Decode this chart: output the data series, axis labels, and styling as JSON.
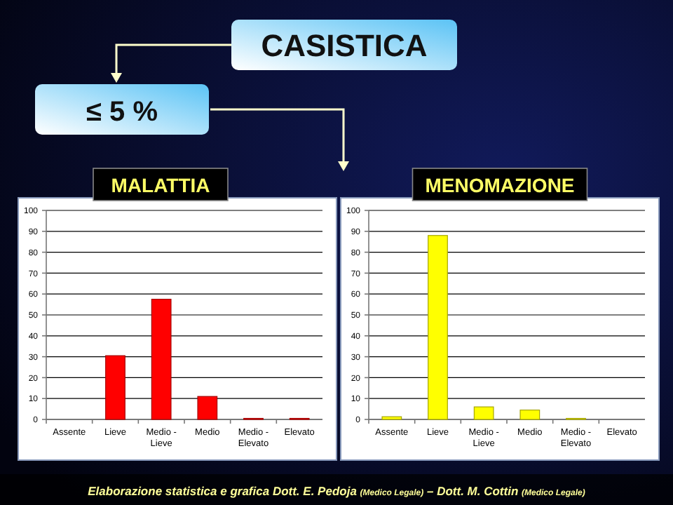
{
  "chart_data": [
    {
      "type": "bar",
      "title": "MALATTIA",
      "categories": [
        "Assente",
        "Lieve",
        "Medio - Lieve",
        "Medio",
        "Medio - Elevato",
        "Elevato"
      ],
      "values": [
        0,
        30.5,
        57.5,
        11,
        0.5,
        0.5
      ],
      "color": "#ff0000",
      "ylim": [
        0,
        100
      ],
      "yticks": [
        0,
        10,
        20,
        30,
        40,
        50,
        60,
        70,
        80,
        90,
        100
      ],
      "grid": "y",
      "annotations": [
        "CASISTICA",
        "≤ 5 %",
        "Elaborazione  statistica e grafica Dott. E. Pedoja (Medico Legale) – Dott. M. Cottin (Medico Legale)"
      ]
    },
    {
      "type": "bar",
      "title": "MENOMAZIONE",
      "categories": [
        "Assente",
        "Lieve",
        "Medio - Lieve",
        "Medio",
        "Medio - Elevato",
        "Elevato"
      ],
      "values": [
        1.3,
        88,
        6,
        4.5,
        0.5,
        0
      ],
      "color": "#ffff00",
      "ylim": [
        0,
        100
      ],
      "yticks": [
        0,
        10,
        20,
        30,
        40,
        50,
        60,
        70,
        80,
        90,
        100
      ],
      "grid": "y"
    }
  ]
}
